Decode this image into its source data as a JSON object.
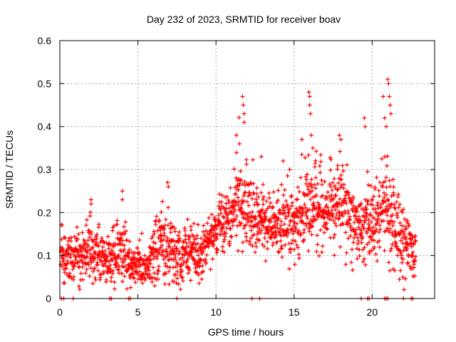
{
  "chart_data": {
    "type": "scatter",
    "title": "Day 232 of 2023, SRMTID for receiver boav",
    "xlabel": "GPS time / hours",
    "ylabel": "SRMTID / TECUs",
    "xlim": [
      0,
      24
    ],
    "ylim": [
      0,
      0.6
    ],
    "xticks": [
      0,
      5,
      10,
      15,
      20
    ],
    "yticks": [
      0,
      0.1,
      0.2,
      0.3,
      0.4,
      0.5,
      0.6
    ],
    "xtick_labels": [
      "0",
      "5",
      "10",
      "15",
      "20"
    ],
    "ytick_labels": [
      "0",
      "0.1",
      "0.2",
      "0.3",
      "0.4",
      "0.5",
      "0.6"
    ],
    "grid": true,
    "series": [
      {
        "name": "SRMTID",
        "color": "#ff0000",
        "marker": "plus",
        "envelope": [
          [
            0.0,
            0.12,
            0.03
          ],
          [
            0.5,
            0.08,
            0.03
          ],
          [
            1.0,
            0.1,
            0.03
          ],
          [
            1.5,
            0.1,
            0.03
          ],
          [
            2.0,
            0.12,
            0.035
          ],
          [
            2.5,
            0.1,
            0.03
          ],
          [
            3.0,
            0.09,
            0.03
          ],
          [
            3.5,
            0.1,
            0.03
          ],
          [
            4.0,
            0.11,
            0.04
          ],
          [
            4.5,
            0.08,
            0.02
          ],
          [
            5.0,
            0.08,
            0.025
          ],
          [
            5.5,
            0.07,
            0.03
          ],
          [
            6.0,
            0.12,
            0.04
          ],
          [
            6.5,
            0.12,
            0.035
          ],
          [
            7.0,
            0.12,
            0.05
          ],
          [
            7.5,
            0.1,
            0.03
          ],
          [
            8.0,
            0.1,
            0.04
          ],
          [
            8.5,
            0.1,
            0.035
          ],
          [
            9.0,
            0.1,
            0.035
          ],
          [
            9.5,
            0.14,
            0.03
          ],
          [
            10.0,
            0.15,
            0.035
          ],
          [
            10.5,
            0.18,
            0.035
          ],
          [
            11.0,
            0.19,
            0.04
          ],
          [
            11.5,
            0.23,
            0.06
          ],
          [
            12.0,
            0.21,
            0.05
          ],
          [
            12.5,
            0.18,
            0.04
          ],
          [
            13.0,
            0.18,
            0.035
          ],
          [
            13.5,
            0.17,
            0.03
          ],
          [
            14.0,
            0.17,
            0.04
          ],
          [
            14.5,
            0.18,
            0.045
          ],
          [
            15.0,
            0.18,
            0.04
          ],
          [
            15.5,
            0.2,
            0.05
          ],
          [
            16.0,
            0.22,
            0.05
          ],
          [
            16.5,
            0.22,
            0.05
          ],
          [
            17.0,
            0.2,
            0.045
          ],
          [
            17.5,
            0.22,
            0.05
          ],
          [
            18.0,
            0.23,
            0.05
          ],
          [
            18.5,
            0.2,
            0.045
          ],
          [
            19.0,
            0.18,
            0.04
          ],
          [
            19.5,
            0.17,
            0.04
          ],
          [
            20.0,
            0.17,
            0.05
          ],
          [
            20.5,
            0.2,
            0.05
          ],
          [
            21.0,
            0.22,
            0.07
          ],
          [
            21.5,
            0.17,
            0.05
          ],
          [
            22.0,
            0.14,
            0.04
          ],
          [
            22.5,
            0.11,
            0.04
          ],
          [
            22.8,
            0.1,
            0.04
          ]
        ],
        "spikes": [
          [
            2.0,
            0.23
          ],
          [
            2.0,
            0.22
          ],
          [
            4.0,
            0.25
          ],
          [
            4.0,
            0.23
          ],
          [
            6.9,
            0.27
          ],
          [
            6.95,
            0.26
          ],
          [
            11.3,
            0.38
          ],
          [
            11.5,
            0.36
          ],
          [
            11.7,
            0.47
          ],
          [
            11.75,
            0.45
          ],
          [
            11.8,
            0.43
          ],
          [
            11.8,
            0.41
          ],
          [
            12.9,
            0.33
          ],
          [
            14.3,
            0.32
          ],
          [
            15.5,
            0.37
          ],
          [
            15.95,
            0.48
          ],
          [
            16.0,
            0.47
          ],
          [
            16.0,
            0.45
          ],
          [
            16.05,
            0.43
          ],
          [
            16.1,
            0.38
          ],
          [
            16.2,
            0.35
          ],
          [
            17.9,
            0.38
          ],
          [
            18.0,
            0.37
          ],
          [
            19.5,
            0.42
          ],
          [
            19.55,
            0.4
          ],
          [
            20.7,
            0.47
          ],
          [
            20.8,
            0.42
          ],
          [
            20.9,
            0.4
          ],
          [
            21.0,
            0.51
          ],
          [
            21.05,
            0.5
          ],
          [
            21.1,
            0.47
          ],
          [
            21.15,
            0.45
          ],
          [
            21.2,
            0.43
          ]
        ],
        "zeros": [
          0.1,
          0.25,
          0.85,
          3.2,
          3.3,
          4.4,
          4.5,
          7.5,
          12.3,
          12.8,
          19.3,
          19.7,
          19.8,
          20.8,
          20.9,
          21.0,
          22.0,
          22.5,
          22.6
        ]
      }
    ]
  }
}
